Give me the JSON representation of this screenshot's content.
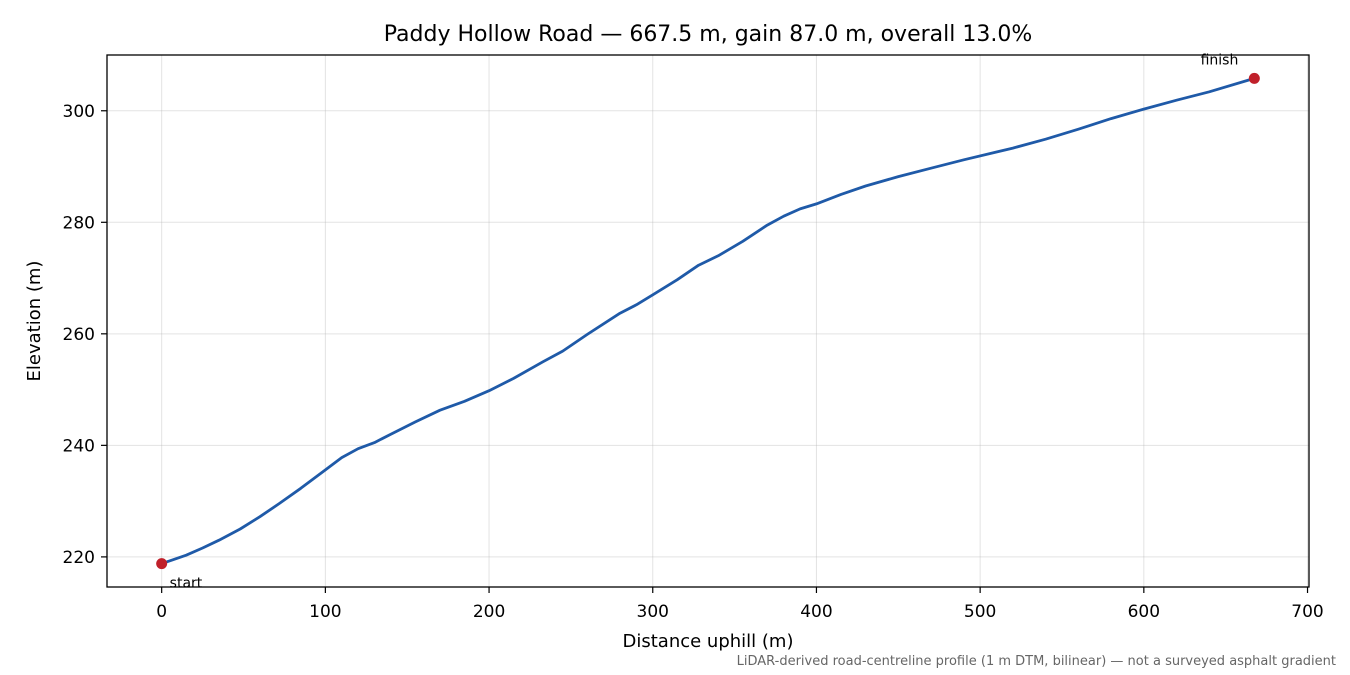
{
  "chart_data": {
    "type": "line",
    "title": "Paddy Hollow Road — 667.5 m, gain 87.0 m, overall 13.0%",
    "xlabel": "Distance uphill (m)",
    "ylabel": "Elevation (m)",
    "xlim": [
      -33.4,
      700.9
    ],
    "ylim": [
      214.6,
      310.0
    ],
    "xticks": [
      0,
      100,
      200,
      300,
      400,
      500,
      600,
      700
    ],
    "yticks": [
      220,
      240,
      260,
      280,
      300
    ],
    "grid": true,
    "line_color": "#1f5aa8",
    "marker_color": "#c0202a",
    "series": [
      {
        "x": [
          0,
          5,
          15,
          25,
          35,
          48,
          60,
          72,
          85,
          100,
          110,
          120,
          130,
          140,
          155,
          170,
          185,
          200,
          215,
          233,
          245,
          260,
          280,
          290,
          300,
          315,
          328,
          340,
          355,
          370,
          380,
          390,
          400,
          415,
          430,
          450,
          470,
          490,
          510,
          520,
          540,
          560,
          580,
          600,
          620,
          640,
          667.5
        ],
        "y": [
          218.8,
          219.3,
          220.3,
          221.6,
          223.0,
          225.0,
          227.2,
          229.6,
          232.3,
          235.6,
          237.8,
          239.4,
          240.5,
          242.0,
          244.2,
          246.3,
          247.9,
          249.8,
          252.0,
          255.0,
          256.9,
          259.9,
          263.7,
          265.2,
          267.0,
          269.7,
          272.3,
          274.0,
          276.6,
          279.5,
          281.1,
          282.4,
          283.3,
          285.0,
          286.5,
          288.2,
          289.7,
          291.2,
          292.6,
          293.3,
          294.9,
          296.7,
          298.6,
          300.3,
          301.9,
          303.4,
          305.8
        ]
      }
    ],
    "annotations": [
      {
        "text": "start",
        "x": 0,
        "y": 218.8
      },
      {
        "text": "finish",
        "x": 667.5,
        "y": 305.8
      }
    ],
    "footnote": "LiDAR-derived road-centreline profile (1 m DTM, bilinear) — not a surveyed asphalt gradient"
  }
}
